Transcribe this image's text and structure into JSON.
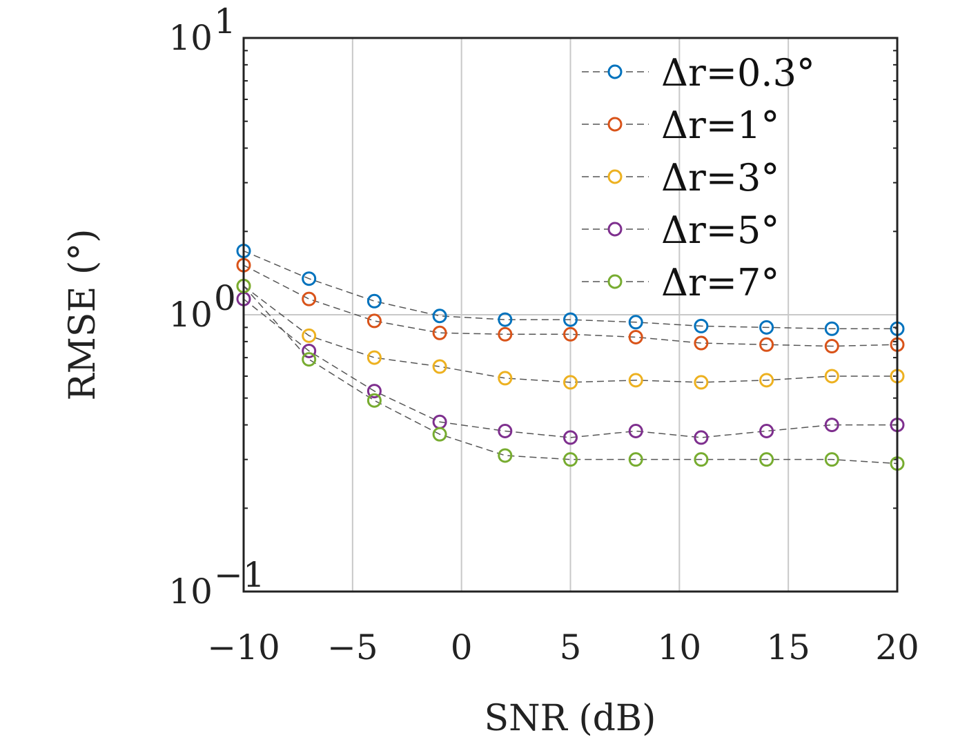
{
  "chart_data": {
    "type": "scatter",
    "title": "",
    "xlabel": "SNR (dB)",
    "ylabel": "RMSE (°)",
    "xlim": [
      -10,
      20
    ],
    "ylim": [
      0.1,
      10
    ],
    "yscale": "log",
    "x_ticks": [
      -10,
      -5,
      0,
      5,
      10,
      15,
      20
    ],
    "x_tick_labels": [
      "−10",
      "−5",
      "0",
      "5",
      "10",
      "15",
      "20"
    ],
    "y_ticks": [
      0.1,
      1,
      10
    ],
    "y_tick_labels": [
      {
        "base": "10",
        "exp": "−1"
      },
      {
        "base": "10",
        "exp": "0"
      },
      {
        "base": "10",
        "exp": "1"
      }
    ],
    "grid": true,
    "legend_position": "top-right",
    "x": [
      -10,
      -7,
      -4,
      -1,
      2,
      5,
      8,
      11,
      14,
      17,
      20
    ],
    "series": [
      {
        "name": "Δr=0.3°",
        "color": "#0072BD",
        "values": [
          1.7,
          1.35,
          1.12,
          0.99,
          0.96,
          0.96,
          0.94,
          0.91,
          0.9,
          0.89,
          0.89
        ]
      },
      {
        "name": "Δr=1°",
        "color": "#D95319",
        "values": [
          1.51,
          1.14,
          0.95,
          0.86,
          0.85,
          0.85,
          0.83,
          0.79,
          0.78,
          0.77,
          0.78
        ]
      },
      {
        "name": "Δr=3°",
        "color": "#EDB120",
        "values": [
          1.27,
          0.84,
          0.7,
          0.65,
          0.59,
          0.57,
          0.58,
          0.57,
          0.58,
          0.6,
          0.6
        ]
      },
      {
        "name": "Δr=5°",
        "color": "#7E2F8E",
        "values": [
          1.14,
          0.74,
          0.53,
          0.41,
          0.38,
          0.36,
          0.38,
          0.36,
          0.38,
          0.4,
          0.4
        ]
      },
      {
        "name": "Δr=7°",
        "color": "#77AC30",
        "values": [
          1.27,
          0.69,
          0.49,
          0.37,
          0.31,
          0.3,
          0.3,
          0.3,
          0.3,
          0.3,
          0.29
        ]
      }
    ]
  }
}
